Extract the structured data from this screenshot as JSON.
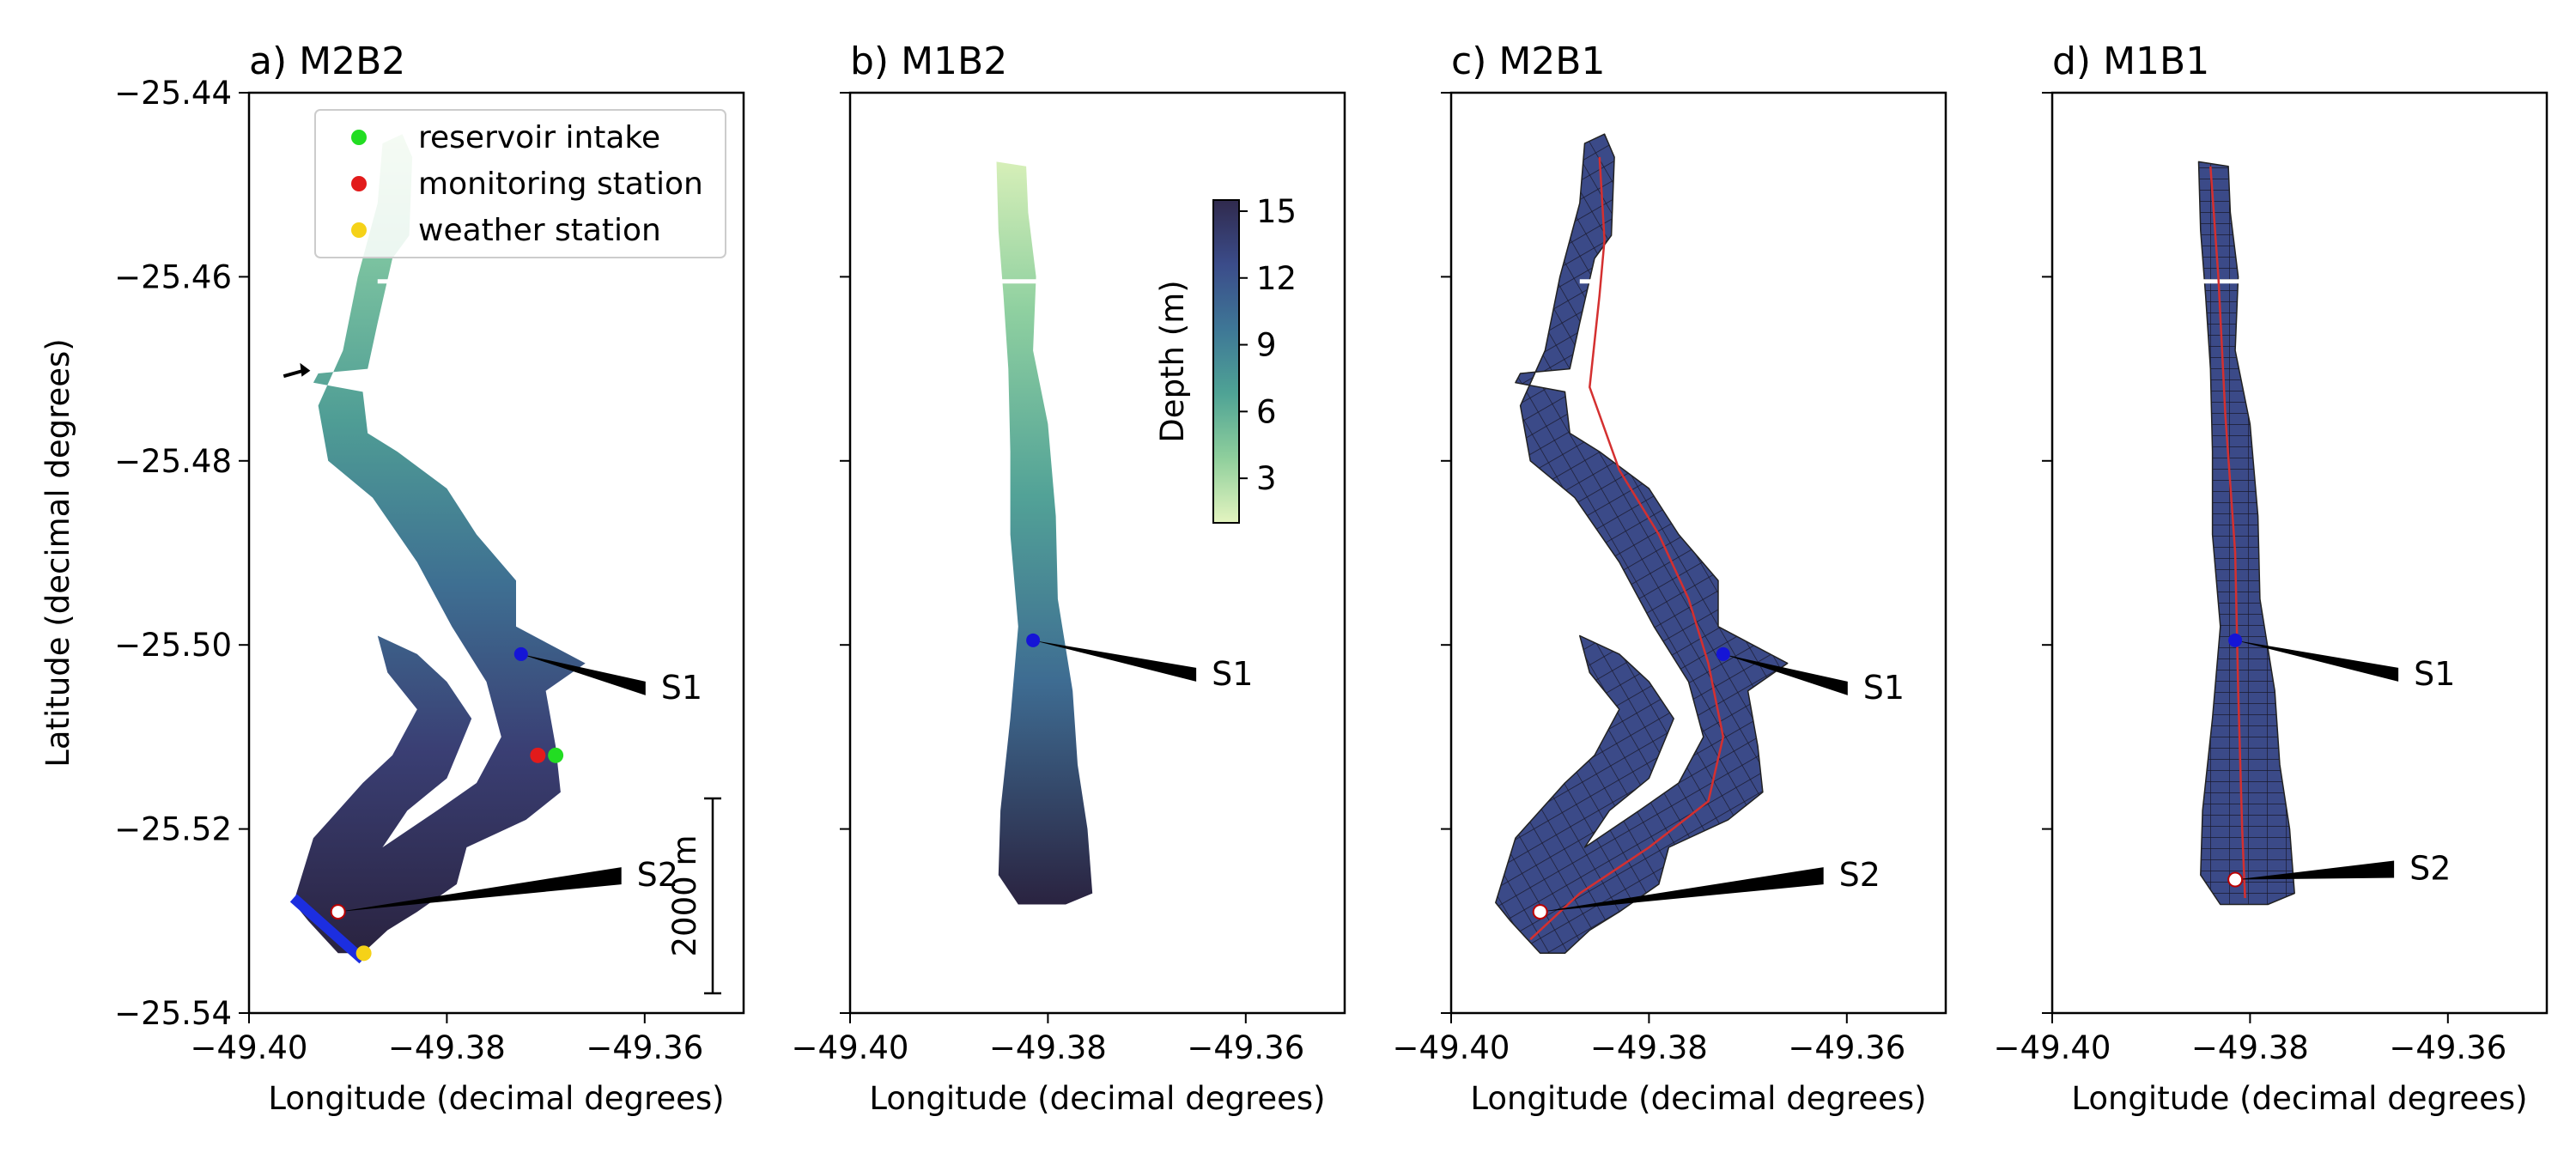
{
  "figure": {
    "shared_x": {
      "label": "Longitude (decimal degrees)",
      "range": [
        -49.4,
        -49.35
      ],
      "ticks": [
        -49.4,
        -49.38,
        -49.36
      ],
      "tick_labels": [
        "−49.40",
        "−49.38",
        "−49.36"
      ]
    },
    "shared_y": {
      "label": "Latitude (decimal degrees)",
      "range": [
        -25.54,
        -25.44
      ],
      "ticks": [
        -25.54,
        -25.52,
        -25.5,
        -25.48,
        -25.46,
        -25.44
      ],
      "tick_labels": [
        "−25.54",
        "−25.52",
        "−25.50",
        "−25.48",
        "−25.46",
        "−25.44"
      ]
    },
    "panels": [
      {
        "id": "a",
        "title": "a) M2B2",
        "style": "depth",
        "reservoir": "full",
        "sections": [
          {
            "label": "S1",
            "lon": -49.3725,
            "lat": -25.501
          },
          {
            "label": "S2",
            "lon": -49.391,
            "lat": -25.529
          }
        ]
      },
      {
        "id": "b",
        "title": "b) M1B2",
        "style": "depth",
        "reservoir": "straight",
        "sections": [
          {
            "label": "S1",
            "lon": -49.3815,
            "lat": -25.4995
          }
        ]
      },
      {
        "id": "c",
        "title": "c) M2B1",
        "style": "grid",
        "reservoir": "full",
        "sections": [
          {
            "label": "S1",
            "lon": -49.3725,
            "lat": -25.501
          },
          {
            "label": "S2",
            "lon": -49.391,
            "lat": -25.529
          }
        ]
      },
      {
        "id": "d",
        "title": "d) M1B1",
        "style": "grid",
        "reservoir": "straight",
        "sections": [
          {
            "label": "S1",
            "lon": -49.3815,
            "lat": -25.4995
          },
          {
            "label": "S2",
            "lon": -49.3815,
            "lat": -25.5255
          }
        ]
      }
    ],
    "legend": {
      "entries": [
        {
          "label": "reservoir intake",
          "color": "#22dd22"
        },
        {
          "label": "monitoring station",
          "color": "#e21b1b"
        },
        {
          "label": "weather station",
          "color": "#f5d218"
        }
      ]
    },
    "points": [
      {
        "type": "reservoir intake",
        "color": "#22dd22",
        "lon": -49.369,
        "lat": -25.512
      },
      {
        "type": "monitoring station",
        "color": "#e21b1b",
        "lon": -49.3708,
        "lat": -25.512
      },
      {
        "type": "weather station",
        "color": "#f5d218",
        "lon": -49.3884,
        "lat": -25.5335
      }
    ],
    "colorbar": {
      "label": "Depth (m)",
      "range": [
        1,
        15.5
      ],
      "ticks": [
        3,
        6,
        9,
        12,
        15
      ],
      "tick_labels": [
        "3",
        "6",
        "9",
        "12",
        "15"
      ],
      "colors": [
        "#e4f4c0",
        "#8fcf9c",
        "#4fa395",
        "#3e7796",
        "#3b4c8a",
        "#302a4d"
      ]
    },
    "scale_bar": {
      "label": "2000 m",
      "length_m": 2000
    },
    "colors": {
      "grid_fill": "#3b4a88",
      "grid_line": "#1a1a2e",
      "centerline": "#d43030",
      "section_point": "#1515d6",
      "boundary": "#1c2ee0"
    }
  }
}
